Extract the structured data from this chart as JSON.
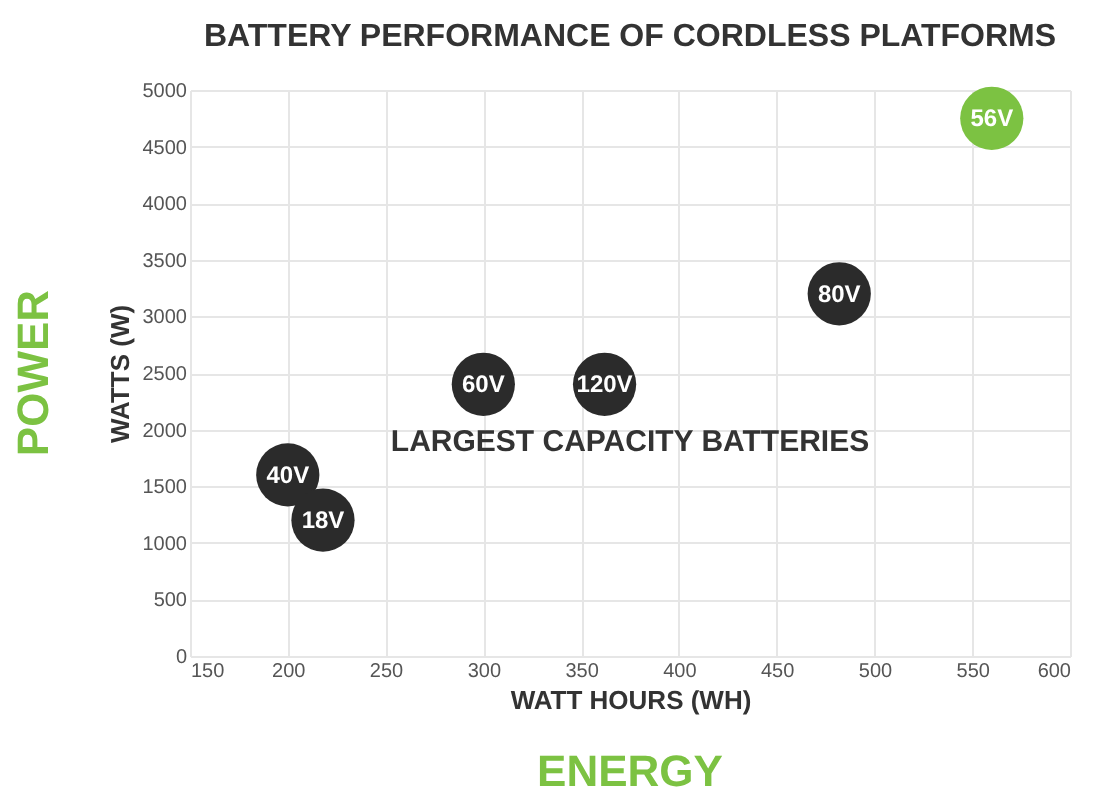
{
  "chart_data": {
    "type": "scatter",
    "title": "BATTERY PERFORMANCE OF CORDLESS PLATFORMS",
    "xlabel": "WATT HOURS (WH)",
    "ylabel": "WATTS (W)",
    "annotations": [
      "LARGEST CAPACITY BATTERIES",
      "ENERGY",
      "POWER"
    ],
    "xlim": [
      150,
      600
    ],
    "xticks": [
      150,
      200,
      250,
      300,
      350,
      400,
      450,
      500,
      550,
      600
    ],
    "ylim": [
      0,
      5000
    ],
    "yticks": [
      0,
      500,
      1000,
      1500,
      2000,
      2500,
      3000,
      3500,
      4000,
      4500,
      5000
    ],
    "grid": true,
    "marker": "circle",
    "legend": false,
    "series": [
      {
        "name": "40V",
        "color": "#2b2b2b",
        "x": [
          200
        ],
        "values": [
          1600
        ]
      },
      {
        "name": "18V",
        "color": "#2b2b2b",
        "x": [
          218
        ],
        "values": [
          1200
        ]
      },
      {
        "name": "60V",
        "color": "#2b2b2b",
        "x": [
          300
        ],
        "values": [
          2400
        ]
      },
      {
        "name": "120V",
        "color": "#2b2b2b",
        "x": [
          362
        ],
        "values": [
          2400
        ]
      },
      {
        "name": "80V",
        "color": "#2b2b2b",
        "x": [
          482
        ],
        "values": [
          3200
        ]
      },
      {
        "name": "56V",
        "color": "#7cc242",
        "x": [
          560
        ],
        "values": [
          4750
        ]
      }
    ]
  }
}
